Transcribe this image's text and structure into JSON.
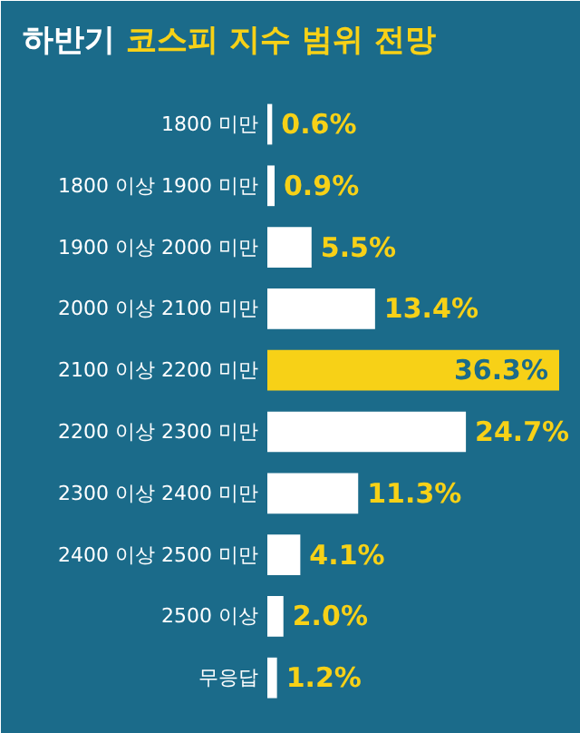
{
  "chart_data": {
    "type": "bar",
    "orientation": "horizontal",
    "title": "하반기 코스피 지수 범위 전망",
    "categories": [
      "1800 미만",
      "1800 이상 1900 미만",
      "1900 이상 2000 미만",
      "2000 이상 2100 미만",
      "2100 이상 2200 미만",
      "2200 이상 2300 미만",
      "2300 이상 2400 미만",
      "2400 이상 2500 미만",
      "2500 이상",
      "무응답"
    ],
    "values": [
      0.6,
      0.9,
      5.5,
      13.4,
      36.3,
      24.7,
      11.3,
      4.1,
      2.0,
      1.2
    ],
    "value_labels": [
      "0.6%",
      "0.9%",
      "5.5%",
      "13.4%",
      "36.3%",
      "24.7%",
      "11.3%",
      "4.1%",
      "2.0%",
      "1.2%"
    ],
    "colors": [
      "#ffffff",
      "#ffffff",
      "#ffffff",
      "#ffffff",
      "#f7d117",
      "#ffffff",
      "#ffffff",
      "#ffffff",
      "#ffffff",
      "#ffffff"
    ]
  }
}
